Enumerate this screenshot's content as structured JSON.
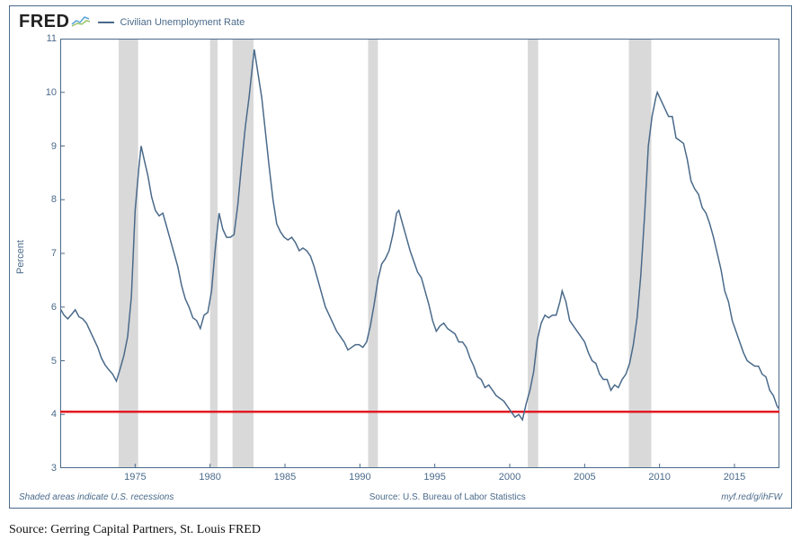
{
  "logo_text": "FRED",
  "legend_label": "Civilian Unemployment Rate",
  "ylabel": "Percent",
  "footer_left": "Shaded areas indicate U.S. recessions",
  "footer_center": "Source: U.S. Bureau of Labor Statistics",
  "footer_right": "myf.red/g/ihFW",
  "source_note": "Source: Gerring Capital Partners, St. Louis FRED",
  "chart": {
    "type": "line",
    "xlim": [
      1970,
      2018
    ],
    "ylim": [
      3,
      11
    ],
    "ytick_step": 1,
    "xtick_step": 5,
    "xtick_start": 1975,
    "xtick_end": 2015,
    "line_color": "#4a6a8a",
    "line_width": 1.5,
    "reference_line_y": 4.05,
    "reference_line_color": "#e31b23",
    "reference_line_width": 2.5,
    "recession_fill": "#d9d9d9",
    "border_color": "#4a6a8a",
    "background": "#ffffff",
    "tick_color": "#4a6a8a",
    "label_fontsize": 11,
    "recessions": [
      [
        1973.9,
        1975.2
      ],
      [
        1980.0,
        1980.5
      ],
      [
        1981.5,
        1982.9
      ],
      [
        1990.55,
        1991.2
      ],
      [
        2001.2,
        2001.9
      ],
      [
        2007.95,
        2009.45
      ]
    ],
    "series": [
      [
        1970.0,
        5.97
      ],
      [
        1970.25,
        5.85
      ],
      [
        1970.5,
        5.78
      ],
      [
        1970.75,
        5.86
      ],
      [
        1971.0,
        5.95
      ],
      [
        1971.25,
        5.82
      ],
      [
        1971.5,
        5.78
      ],
      [
        1971.75,
        5.7
      ],
      [
        1972.0,
        5.55
      ],
      [
        1972.25,
        5.4
      ],
      [
        1972.5,
        5.25
      ],
      [
        1972.75,
        5.05
      ],
      [
        1973.0,
        4.92
      ],
      [
        1973.25,
        4.83
      ],
      [
        1973.5,
        4.75
      ],
      [
        1973.75,
        4.62
      ],
      [
        1974.0,
        4.85
      ],
      [
        1974.25,
        5.1
      ],
      [
        1974.5,
        5.45
      ],
      [
        1974.75,
        6.2
      ],
      [
        1975.0,
        7.8
      ],
      [
        1975.25,
        8.6
      ],
      [
        1975.4,
        9.0
      ],
      [
        1975.6,
        8.75
      ],
      [
        1975.85,
        8.45
      ],
      [
        1976.1,
        8.05
      ],
      [
        1976.35,
        7.8
      ],
      [
        1976.6,
        7.7
      ],
      [
        1976.85,
        7.75
      ],
      [
        1977.1,
        7.5
      ],
      [
        1977.35,
        7.25
      ],
      [
        1977.6,
        7.0
      ],
      [
        1977.85,
        6.75
      ],
      [
        1978.1,
        6.4
      ],
      [
        1978.35,
        6.15
      ],
      [
        1978.6,
        6.0
      ],
      [
        1978.85,
        5.8
      ],
      [
        1979.1,
        5.75
      ],
      [
        1979.35,
        5.6
      ],
      [
        1979.6,
        5.85
      ],
      [
        1979.85,
        5.9
      ],
      [
        1980.1,
        6.3
      ],
      [
        1980.35,
        7.1
      ],
      [
        1980.6,
        7.75
      ],
      [
        1980.85,
        7.45
      ],
      [
        1981.1,
        7.3
      ],
      [
        1981.35,
        7.3
      ],
      [
        1981.6,
        7.35
      ],
      [
        1981.85,
        7.9
      ],
      [
        1982.1,
        8.65
      ],
      [
        1982.35,
        9.35
      ],
      [
        1982.6,
        9.9
      ],
      [
        1982.85,
        10.55
      ],
      [
        1982.95,
        10.8
      ],
      [
        1983.2,
        10.35
      ],
      [
        1983.45,
        9.9
      ],
      [
        1983.7,
        9.25
      ],
      [
        1983.95,
        8.6
      ],
      [
        1984.2,
        8.0
      ],
      [
        1984.45,
        7.55
      ],
      [
        1984.7,
        7.4
      ],
      [
        1984.95,
        7.3
      ],
      [
        1985.2,
        7.25
      ],
      [
        1985.45,
        7.3
      ],
      [
        1985.7,
        7.2
      ],
      [
        1985.95,
        7.05
      ],
      [
        1986.2,
        7.1
      ],
      [
        1986.45,
        7.05
      ],
      [
        1986.7,
        6.95
      ],
      [
        1986.95,
        6.75
      ],
      [
        1987.2,
        6.5
      ],
      [
        1987.45,
        6.25
      ],
      [
        1987.7,
        6.0
      ],
      [
        1987.95,
        5.85
      ],
      [
        1988.2,
        5.7
      ],
      [
        1988.45,
        5.55
      ],
      [
        1988.7,
        5.45
      ],
      [
        1988.95,
        5.35
      ],
      [
        1989.2,
        5.2
      ],
      [
        1989.45,
        5.25
      ],
      [
        1989.7,
        5.3
      ],
      [
        1989.95,
        5.3
      ],
      [
        1990.2,
        5.25
      ],
      [
        1990.45,
        5.35
      ],
      [
        1990.7,
        5.65
      ],
      [
        1990.95,
        6.05
      ],
      [
        1991.2,
        6.5
      ],
      [
        1991.45,
        6.8
      ],
      [
        1991.7,
        6.9
      ],
      [
        1991.95,
        7.05
      ],
      [
        1992.2,
        7.35
      ],
      [
        1992.45,
        7.75
      ],
      [
        1992.6,
        7.8
      ],
      [
        1992.85,
        7.55
      ],
      [
        1993.1,
        7.3
      ],
      [
        1993.35,
        7.05
      ],
      [
        1993.6,
        6.85
      ],
      [
        1993.85,
        6.65
      ],
      [
        1994.1,
        6.55
      ],
      [
        1994.35,
        6.3
      ],
      [
        1994.6,
        6.05
      ],
      [
        1994.85,
        5.75
      ],
      [
        1995.1,
        5.55
      ],
      [
        1995.35,
        5.65
      ],
      [
        1995.6,
        5.7
      ],
      [
        1995.85,
        5.6
      ],
      [
        1996.1,
        5.55
      ],
      [
        1996.35,
        5.5
      ],
      [
        1996.6,
        5.35
      ],
      [
        1996.85,
        5.35
      ],
      [
        1997.1,
        5.25
      ],
      [
        1997.35,
        5.05
      ],
      [
        1997.6,
        4.9
      ],
      [
        1997.85,
        4.7
      ],
      [
        1998.1,
        4.65
      ],
      [
        1998.35,
        4.5
      ],
      [
        1998.6,
        4.55
      ],
      [
        1998.85,
        4.45
      ],
      [
        1999.1,
        4.35
      ],
      [
        1999.35,
        4.3
      ],
      [
        1999.6,
        4.25
      ],
      [
        1999.85,
        4.15
      ],
      [
        2000.1,
        4.05
      ],
      [
        2000.35,
        3.95
      ],
      [
        2000.6,
        4.0
      ],
      [
        2000.85,
        3.9
      ],
      [
        2001.1,
        4.2
      ],
      [
        2001.35,
        4.45
      ],
      [
        2001.6,
        4.8
      ],
      [
        2001.85,
        5.4
      ],
      [
        2002.1,
        5.7
      ],
      [
        2002.35,
        5.85
      ],
      [
        2002.6,
        5.8
      ],
      [
        2002.85,
        5.85
      ],
      [
        2003.1,
        5.85
      ],
      [
        2003.35,
        6.1
      ],
      [
        2003.5,
        6.3
      ],
      [
        2003.75,
        6.1
      ],
      [
        2004.0,
        5.75
      ],
      [
        2004.25,
        5.65
      ],
      [
        2004.5,
        5.55
      ],
      [
        2004.75,
        5.45
      ],
      [
        2005.0,
        5.35
      ],
      [
        2005.25,
        5.15
      ],
      [
        2005.5,
        5.0
      ],
      [
        2005.75,
        4.95
      ],
      [
        2006.0,
        4.75
      ],
      [
        2006.25,
        4.65
      ],
      [
        2006.5,
        4.65
      ],
      [
        2006.75,
        4.45
      ],
      [
        2007.0,
        4.55
      ],
      [
        2007.25,
        4.5
      ],
      [
        2007.5,
        4.65
      ],
      [
        2007.75,
        4.75
      ],
      [
        2008.0,
        4.95
      ],
      [
        2008.25,
        5.3
      ],
      [
        2008.5,
        5.8
      ],
      [
        2008.75,
        6.6
      ],
      [
        2009.0,
        7.7
      ],
      [
        2009.25,
        9.0
      ],
      [
        2009.5,
        9.55
      ],
      [
        2009.75,
        9.9
      ],
      [
        2009.85,
        10.0
      ],
      [
        2010.1,
        9.85
      ],
      [
        2010.35,
        9.7
      ],
      [
        2010.6,
        9.55
      ],
      [
        2010.85,
        9.55
      ],
      [
        2011.1,
        9.15
      ],
      [
        2011.35,
        9.1
      ],
      [
        2011.6,
        9.05
      ],
      [
        2011.85,
        8.75
      ],
      [
        2012.1,
        8.35
      ],
      [
        2012.35,
        8.2
      ],
      [
        2012.6,
        8.1
      ],
      [
        2012.85,
        7.85
      ],
      [
        2013.1,
        7.75
      ],
      [
        2013.35,
        7.55
      ],
      [
        2013.6,
        7.3
      ],
      [
        2013.85,
        7.0
      ],
      [
        2014.1,
        6.7
      ],
      [
        2014.35,
        6.3
      ],
      [
        2014.6,
        6.1
      ],
      [
        2014.85,
        5.75
      ],
      [
        2015.1,
        5.55
      ],
      [
        2015.35,
        5.35
      ],
      [
        2015.6,
        5.15
      ],
      [
        2015.85,
        5.0
      ],
      [
        2016.1,
        4.95
      ],
      [
        2016.35,
        4.9
      ],
      [
        2016.6,
        4.9
      ],
      [
        2016.85,
        4.75
      ],
      [
        2017.1,
        4.7
      ],
      [
        2017.35,
        4.45
      ],
      [
        2017.6,
        4.35
      ],
      [
        2017.85,
        4.15
      ],
      [
        2018.0,
        4.1
      ]
    ]
  }
}
